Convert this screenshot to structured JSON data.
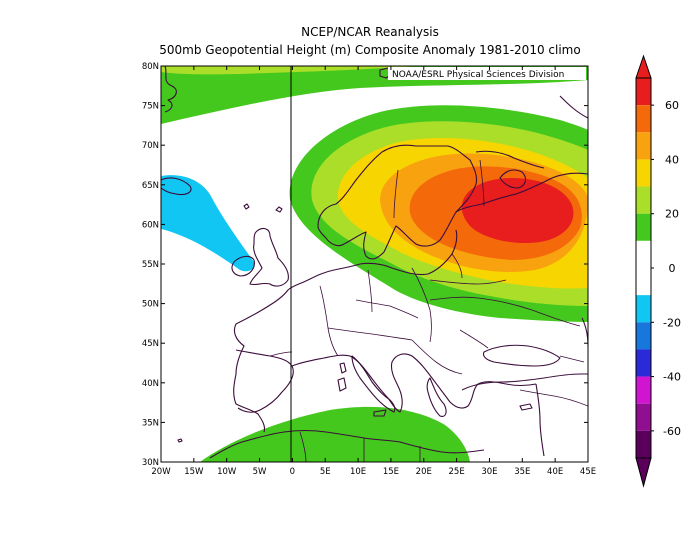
{
  "title": "NCEP/NCAR Reanalysis",
  "subtitle": "500mb Geopotential Height (m) Composite Anomaly 1981-2010 climo",
  "credit": "NOAA/ESRL Physical Sciences Division",
  "map": {
    "lon_range": [
      -20,
      45
    ],
    "lat_range": [
      30,
      80
    ],
    "lon_labels": [
      "20W",
      "15W",
      "10W",
      "5W",
      "0",
      "5E",
      "10E",
      "15E",
      "20E",
      "25E",
      "30E",
      "35E",
      "40E",
      "45E"
    ],
    "lat_labels": [
      "30N",
      "35N",
      "40N",
      "45N",
      "50N",
      "55N",
      "60N",
      "65N",
      "70N",
      "75N",
      "80N"
    ],
    "features": [
      {
        "name": "positive-anomaly-center",
        "description": "Strong positive height anomaly (>60 m) centered over western Russia / Finland near 63N 35E"
      },
      {
        "name": "negative-anomaly-ireland",
        "description": "Negative anomaly (-20 to 0 m) extending from Ireland northwest toward Iceland"
      },
      {
        "name": "positive-anomaly-mediterranean",
        "description": "Weak positive anomaly (20-30 m) over the western Mediterranean and North Africa"
      },
      {
        "name": "positive-anomaly-arctic",
        "description": "Weak positive anomaly (20-30 m) over the Greenland/Arctic region near 78N"
      }
    ]
  },
  "colorbar": {
    "labels": [
      "60",
      "40",
      "20",
      "0",
      "-20",
      "-40",
      "-60"
    ],
    "colors": [
      "#e81e1e",
      "#f46a0a",
      "#f9a20f",
      "#f7d500",
      "#aade28",
      "#44c81e",
      "#ffffff",
      "#ffffff",
      "#11c6f2",
      "#1777dd",
      "#2a2ad8",
      "#d014d0",
      "#900f90",
      "#5a005a"
    ]
  }
}
